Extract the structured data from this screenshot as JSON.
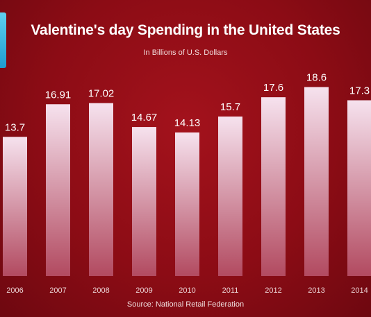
{
  "chart_data": {
    "type": "bar",
    "title": "Valentine's day Spending in the United States",
    "subtitle": "In Billions of U.S. Dollars",
    "source": "Source: National Retail Federation",
    "categories": [
      "2006",
      "2007",
      "2008",
      "2009",
      "2010",
      "2011",
      "2012",
      "2013",
      "2014"
    ],
    "values": [
      13.7,
      16.91,
      17.02,
      14.67,
      14.13,
      15.7,
      17.6,
      18.6,
      17.3
    ],
    "value_labels": [
      "13.7",
      "16.91",
      "17.02",
      "14.67",
      "14.13",
      "15.7",
      "17.6",
      "18.6",
      "17.3"
    ],
    "ylim": [
      0,
      22
    ],
    "grid": false,
    "legend": "none",
    "colors": {
      "bar_top": "#f6e2ee",
      "bar_bottom": "#b24a60",
      "background": "#9a0f19"
    }
  }
}
